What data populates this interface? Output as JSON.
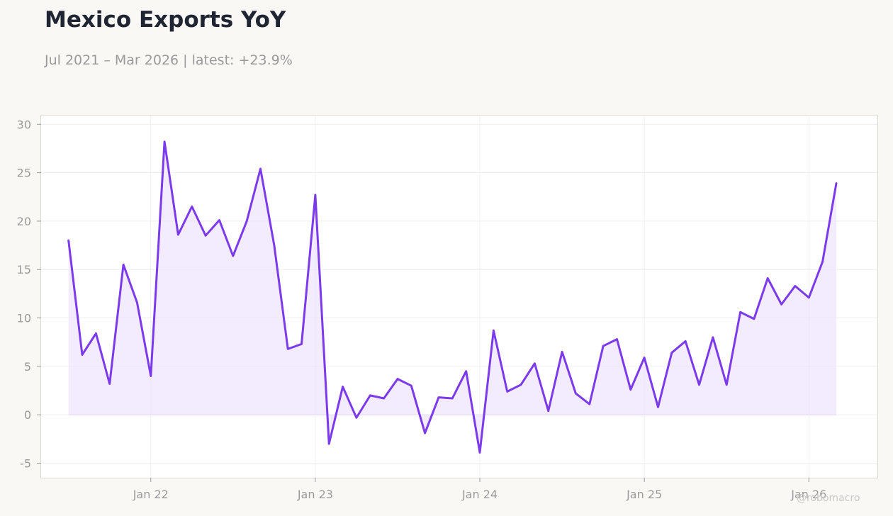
{
  "chart_data": {
    "type": "area",
    "title": "Mexico Exports YoY",
    "subtitle": "Jul 2021 – Mar 2026 | latest: +23.9%",
    "xlabel": "",
    "ylabel": "",
    "x_ticks": [
      "Jan 22",
      "Jan 23",
      "Jan 24",
      "Jan 25",
      "Jan 26"
    ],
    "y_ticks": [
      30,
      25,
      20,
      15,
      10,
      5,
      0,
      -5
    ],
    "xlim": [
      "2021-05",
      "2026-06"
    ],
    "ylim": [
      -6.5,
      30.9
    ],
    "grid": true,
    "legend": "none",
    "line_color": "#7c3aed",
    "fill_color": "#ede4fd",
    "series": [
      {
        "x": [
          "2021-07",
          "2021-08",
          "2021-09",
          "2021-10",
          "2021-11",
          "2021-12",
          "2022-01",
          "2022-02",
          "2022-03",
          "2022-04",
          "2022-05",
          "2022-06",
          "2022-07",
          "2022-08",
          "2022-09",
          "2022-10",
          "2022-11",
          "2022-12",
          "2023-01",
          "2023-02",
          "2023-03",
          "2023-04",
          "2023-05",
          "2023-06",
          "2023-07",
          "2023-08",
          "2023-09",
          "2023-10",
          "2023-11",
          "2023-12",
          "2024-01",
          "2024-02",
          "2024-03",
          "2024-04",
          "2024-05",
          "2024-06",
          "2024-07",
          "2024-08",
          "2024-09",
          "2024-10",
          "2024-11",
          "2024-12",
          "2025-01",
          "2025-02",
          "2025-03",
          "2025-04",
          "2025-05",
          "2025-06",
          "2025-07",
          "2025-08",
          "2025-09",
          "2025-10",
          "2025-11",
          "2025-12",
          "2026-01",
          "2026-02",
          "2026-03"
        ],
        "values": [
          18.0,
          6.2,
          8.4,
          3.2,
          15.5,
          11.6,
          4.0,
          28.2,
          18.6,
          21.5,
          18.5,
          20.1,
          16.4,
          20.0,
          25.4,
          17.5,
          6.8,
          7.3,
          22.7,
          -3.0,
          2.9,
          -0.3,
          2.0,
          1.7,
          3.7,
          3.0,
          -1.9,
          1.8,
          1.7,
          4.5,
          -3.9,
          8.7,
          2.4,
          3.1,
          5.3,
          0.4,
          6.5,
          2.2,
          1.1,
          7.1,
          7.8,
          2.6,
          5.9,
          0.8,
          6.4,
          7.6,
          3.1,
          8.0,
          3.1,
          10.6,
          9.9,
          14.1,
          11.4,
          13.3,
          12.1,
          15.8,
          23.9
        ]
      }
    ]
  },
  "watermark": "@robomacro"
}
